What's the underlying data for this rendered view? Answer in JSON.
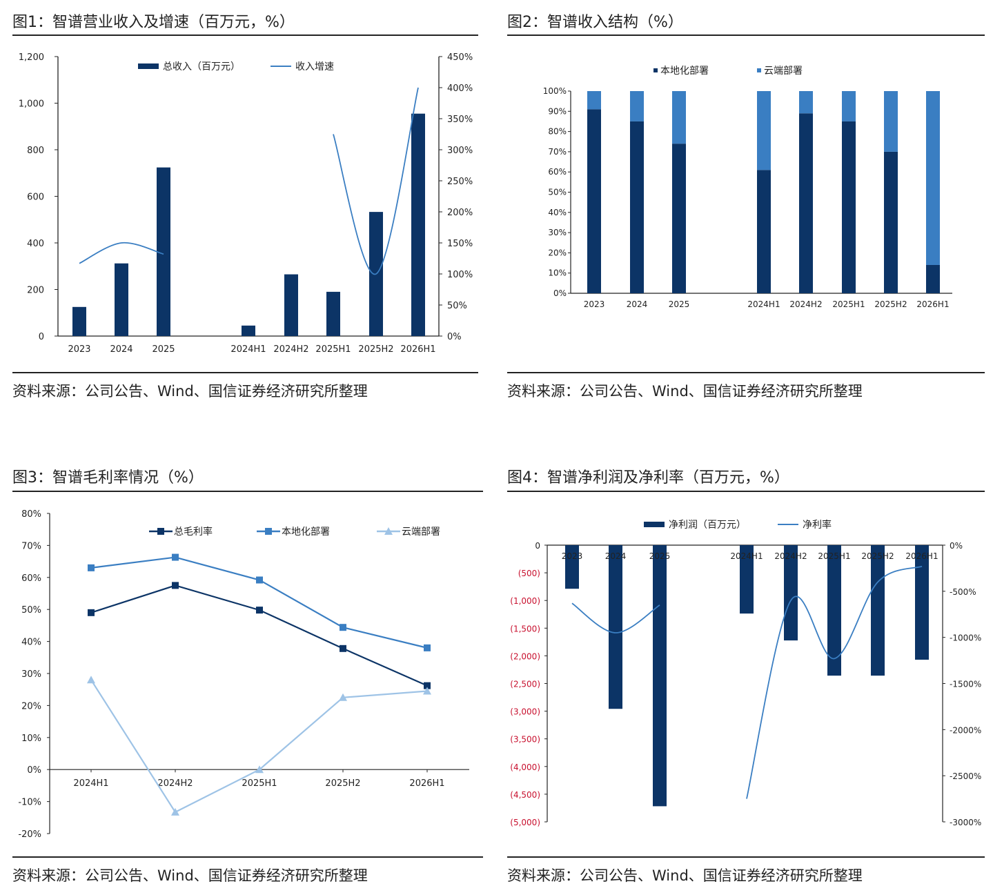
{
  "colors": {
    "dark": "#0c3466",
    "mid": "#3a7ec2",
    "light": "#9ec3e6",
    "neg": "#c8102e",
    "axis": "#222222"
  },
  "source_text": "资料来源：公司公告、Wind、国信证券经济研究所整理",
  "chart_data": [
    {
      "id": "fig1",
      "type": "bar",
      "title": "图1：智谱营业收入及增速（百万元，%）",
      "categories": [
        "2023",
        "2024",
        "2025",
        "",
        "2024H1",
        "2024H2",
        "2025H1",
        "2025H2",
        "2026H1"
      ],
      "left_ticks": [
        "1,200",
        "1,000",
        "800",
        "600",
        "400",
        "200",
        "0"
      ],
      "right_ticks": [
        "450%",
        "400%",
        "350%",
        "300%",
        "250%",
        "200%",
        "150%",
        "100%",
        "50%",
        "0%"
      ],
      "ylim_left": [
        0,
        1200
      ],
      "ylim_right": [
        0,
        450
      ],
      "series": [
        {
          "name": "总收入（百万元）",
          "type": "bar",
          "axis": "left",
          "values": [
            125,
            312,
            724,
            null,
            45,
            265,
            190,
            533,
            955
          ]
        },
        {
          "name": "收入增速",
          "type": "line",
          "axis": "right",
          "values": [
            117,
            150,
            132,
            null,
            null,
            null,
            325,
            100,
            400
          ]
        }
      ],
      "legend": "top"
    },
    {
      "id": "fig2",
      "type": "bar",
      "stacked": true,
      "title": "图2：智谱收入结构（%）",
      "categories": [
        "2023",
        "2024",
        "2025",
        "",
        "2024H1",
        "2024H2",
        "2025H1",
        "2025H2",
        "2026H1"
      ],
      "left_ticks": [
        "100%",
        "90%",
        "80%",
        "70%",
        "60%",
        "50%",
        "40%",
        "30%",
        "20%",
        "10%",
        "0%"
      ],
      "ylim": [
        0,
        100
      ],
      "series": [
        {
          "name": "本地化部署",
          "values": [
            91,
            85,
            74,
            null,
            61,
            89,
            85,
            70,
            14
          ]
        },
        {
          "name": "云端部署",
          "values": [
            9,
            15,
            26,
            null,
            39,
            11,
            15,
            30,
            86
          ]
        }
      ],
      "legend": "top"
    },
    {
      "id": "fig3",
      "type": "line",
      "title": "图3：智谱毛利率情况（%）",
      "categories": [
        "2024H1",
        "2024H2",
        "2025H1",
        "2025H2",
        "2026H1"
      ],
      "left_ticks": [
        "80%",
        "70%",
        "60%",
        "50%",
        "40%",
        "30%",
        "20%",
        "10%",
        "0%",
        "-10%",
        "-20%"
      ],
      "ylim": [
        -20,
        80
      ],
      "series": [
        {
          "name": "总毛利率",
          "values": [
            49,
            57.5,
            49.8,
            37.8,
            26.2
          ]
        },
        {
          "name": "本地化部署",
          "values": [
            63,
            66.3,
            59.2,
            44.4,
            38
          ]
        },
        {
          "name": "云端部署",
          "values": [
            28,
            -13.3,
            0,
            22.5,
            24.5
          ]
        }
      ],
      "legend": "top"
    },
    {
      "id": "fig4",
      "type": "bar",
      "title": "图4：智谱净利润及净利率（百万元，%）",
      "categories": [
        "2023",
        "2024",
        "2025",
        "",
        "2024H1",
        "2024H2",
        "2025H1",
        "2025H2",
        "2026H1"
      ],
      "left_ticks": [
        "0",
        "(500)",
        "(1,000)",
        "(1,500)",
        "(2,000)",
        "(2,500)",
        "(3,000)",
        "(3,500)",
        "(4,000)",
        "(4,500)",
        "(5,000)"
      ],
      "right_ticks": [
        "0%",
        "-500%",
        "-1000%",
        "-1500%",
        "-2000%",
        "-2500%",
        "-3000%"
      ],
      "ylim_left": [
        -5000,
        0
      ],
      "ylim_right": [
        -3000,
        0
      ],
      "series": [
        {
          "name": "净利润（百万元）",
          "type": "bar",
          "axis": "left",
          "values": [
            -788,
            -2958,
            -4718,
            null,
            -1236,
            -1722,
            -2358,
            -2358,
            -2070
          ]
        },
        {
          "name": "净利率",
          "type": "line",
          "axis": "right",
          "values": [
            -630,
            -950,
            -650,
            null,
            -2750,
            -600,
            -1230,
            -400,
            -230
          ]
        }
      ],
      "legend": "top"
    }
  ]
}
